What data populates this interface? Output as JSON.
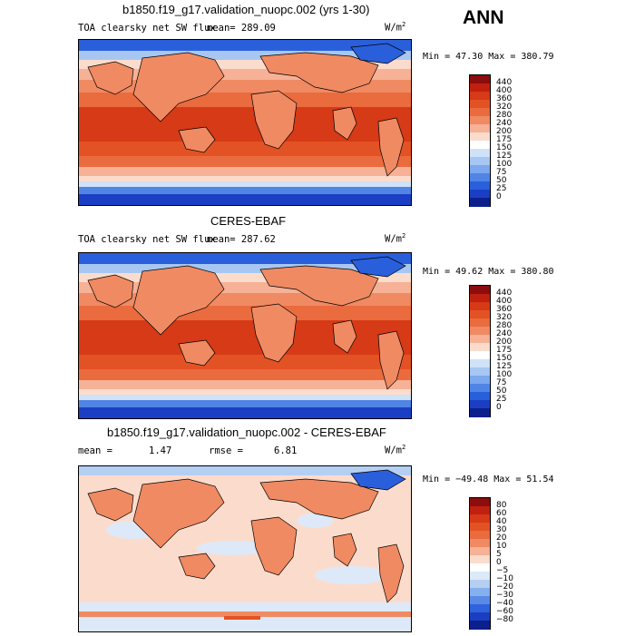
{
  "season": "ANN",
  "panels": [
    {
      "title": "b1850.f19_g17.validation_nuopc.002 (yrs 1-30)",
      "field": "TOA clearsky net SW flux",
      "mean_text": "mean= 289.09",
      "units_base": "W/m",
      "units_exp": "2",
      "minmax": "Min =  47.30 Max = 380.79",
      "kind": "abs"
    },
    {
      "title": "CERES-EBAF",
      "field": "TOA clearsky net SW flux",
      "mean_text": "mean= 287.62",
      "units_base": "W/m",
      "units_exp": "2",
      "minmax": "Min =  49.62 Max = 380.80",
      "kind": "abs"
    },
    {
      "title": "b1850.f19_g17.validation_nuopc.002 - CERES-EBAF",
      "mean_label": "mean =",
      "mean_value": "1.47",
      "rmse_label": "rmse =",
      "rmse_value": "6.81",
      "units_base": "W/m",
      "units_exp": "2",
      "minmax": "Min = −49.48 Max =  51.54",
      "kind": "diff"
    }
  ],
  "colorbars": {
    "abs": {
      "labels": [
        "440",
        "400",
        "360",
        "320",
        "280",
        "240",
        "200",
        "175",
        "150",
        "125",
        "100",
        "75",
        "50",
        "25",
        "0"
      ],
      "colors": [
        "#8b0d0d",
        "#c0200f",
        "#d63a16",
        "#e35224",
        "#ea6b3e",
        "#f08a62",
        "#f6b196",
        "#fbdccc",
        "#ffffff",
        "#cfe2f7",
        "#a7c7f2",
        "#7ba8ee",
        "#5085e6",
        "#2a5fdc",
        "#1b3fc4",
        "#0c1f8c"
      ]
    },
    "diff": {
      "labels": [
        "80",
        "60",
        "40",
        "30",
        "20",
        "10",
        "5",
        "0",
        "−5",
        "−10",
        "−20",
        "−30",
        "−40",
        "−60",
        "−80"
      ],
      "colors": [
        "#8b0d0d",
        "#c0200f",
        "#d63a16",
        "#e35224",
        "#ea6b3e",
        "#f08a62",
        "#f6b196",
        "#fbdccc",
        "#ffffff",
        "#dde9f8",
        "#b5cff3",
        "#86afee",
        "#5a8ae6",
        "#2f62db",
        "#1a3ec2",
        "#0c1f8c"
      ]
    }
  }
}
